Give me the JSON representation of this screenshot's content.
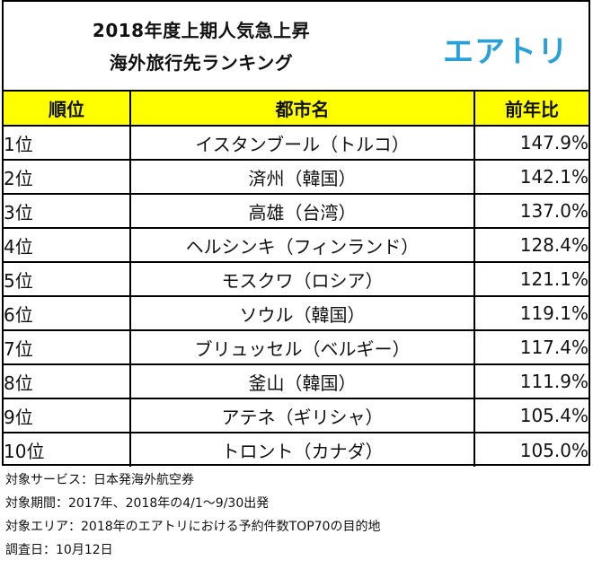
{
  "header": {
    "title_line1": "2018年度上期人気急上昇",
    "title_line2": "海外旅行先ランキング",
    "brand": "エアトリ"
  },
  "table": {
    "columns": [
      "順位",
      "都市名",
      "前年比"
    ],
    "rows": [
      {
        "rank": "1位",
        "city": "イスタンブール（トルコ）",
        "ratio": "147.9%"
      },
      {
        "rank": "2位",
        "city": "済州（韓国）",
        "ratio": "142.1%"
      },
      {
        "rank": "3位",
        "city": "高雄（台湾）",
        "ratio": "137.0%"
      },
      {
        "rank": "4位",
        "city": "ヘルシンキ（フィンランド）",
        "ratio": "128.4%"
      },
      {
        "rank": "5位",
        "city": "モスクワ（ロシア）",
        "ratio": "121.1%"
      },
      {
        "rank": "6位",
        "city": "ソウル（韓国）",
        "ratio": "119.1%"
      },
      {
        "rank": "7位",
        "city": "ブリュッセル（ベルギー）",
        "ratio": "117.4%"
      },
      {
        "rank": "8位",
        "city": "釜山（韓国）",
        "ratio": "111.9%"
      },
      {
        "rank": "9位",
        "city": "アテネ（ギリシャ）",
        "ratio": "105.4%"
      },
      {
        "rank": "10位",
        "city": "トロント（カナダ）",
        "ratio": "105.0%"
      }
    ]
  },
  "notes": [
    "対象サービス：日本発海外航空券",
    "対象期間：2017年、2018年の4/1〜9/30出発",
    "対象エリア：2018年のエアトリにおける予約件数TOP70の目的地",
    "調査日：10月12日"
  ],
  "colors": {
    "header_bg": "#ffff00",
    "brand": "#2aa0d8"
  }
}
